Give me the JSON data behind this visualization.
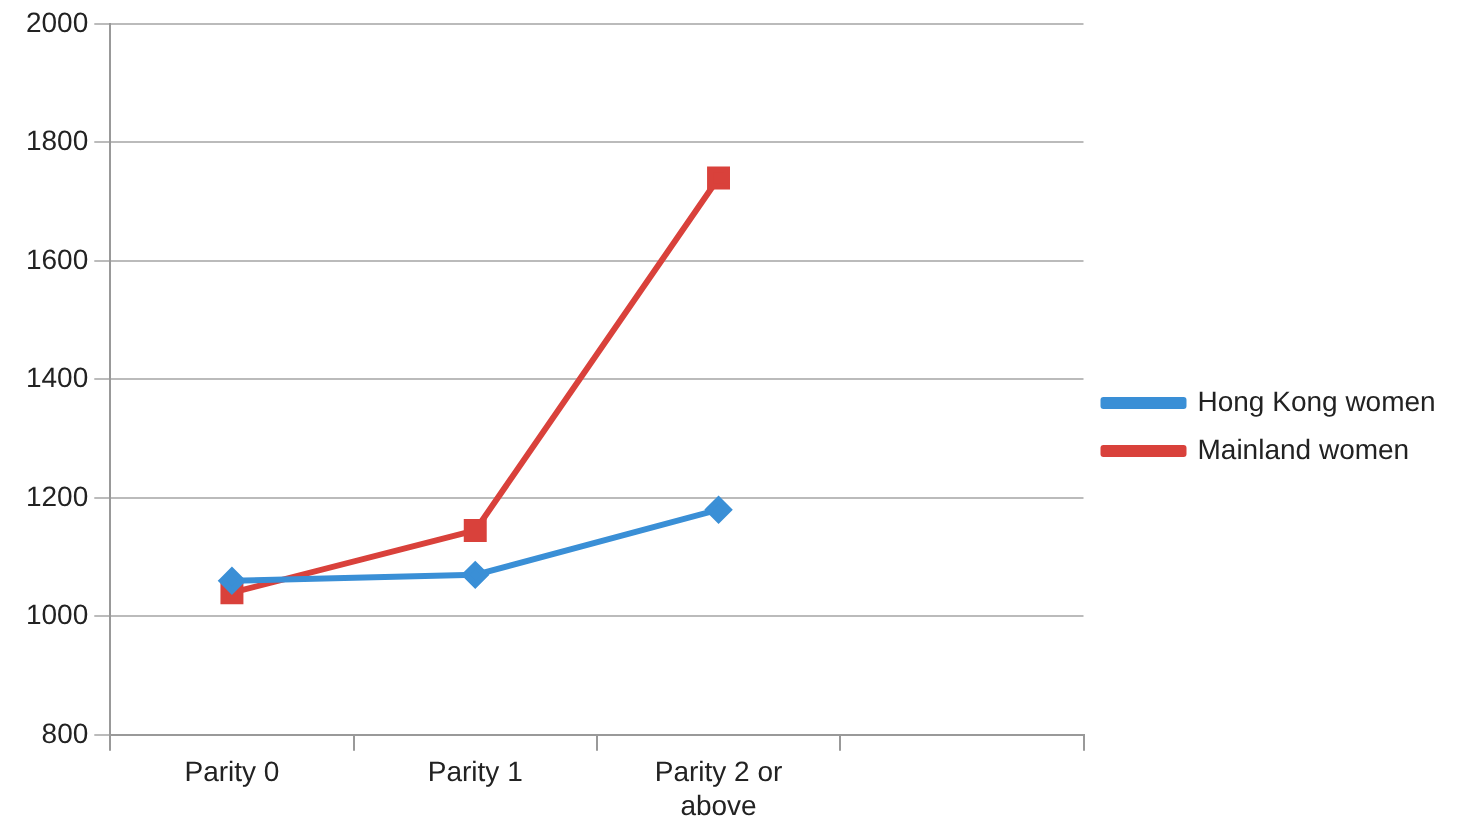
{
  "chart_data": {
    "type": "line",
    "categories": [
      "Parity 0",
      "Parity 1",
      "Parity 2 or above",
      null
    ],
    "series": [
      {
        "name": "Hong Kong women",
        "color": "#3a8fd6",
        "values": [
          1060,
          1070,
          1180,
          null
        ],
        "marker": "diamond"
      },
      {
        "name": "Mainland women",
        "color": "#d9413b",
        "values": [
          1040,
          1145,
          1740,
          null
        ],
        "marker": "square"
      }
    ],
    "ylim": [
      800,
      2000
    ],
    "yticks": [
      800,
      1000,
      1200,
      1400,
      1600,
      1800,
      2000
    ],
    "grid": "y",
    "legend": "right"
  }
}
